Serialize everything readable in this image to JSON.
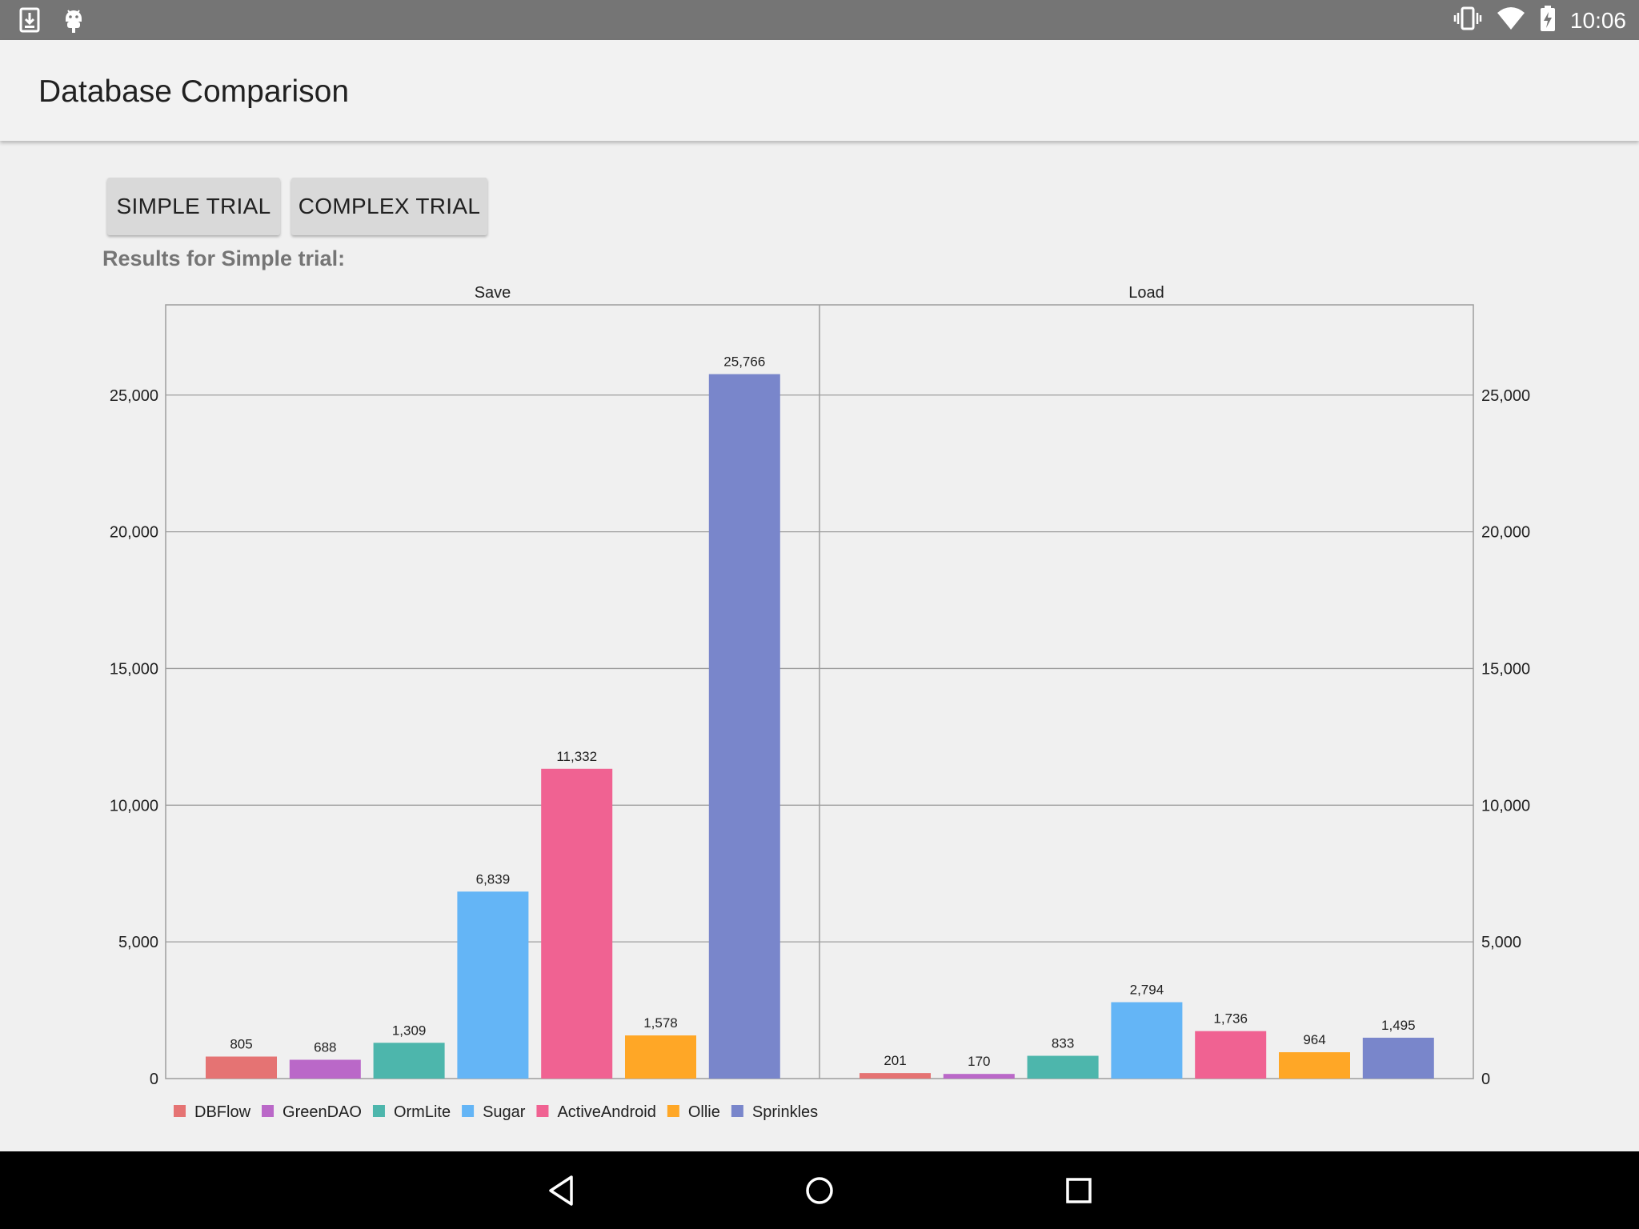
{
  "status_bar": {
    "time": "10:06",
    "left_icons": [
      "download-icon",
      "android-debug-icon"
    ],
    "right_icons": [
      "vibrate-icon",
      "wifi-icon",
      "battery-charging-icon"
    ]
  },
  "app_bar": {
    "title": "Database Comparison"
  },
  "buttons": {
    "simple": "SIMPLE TRIAL",
    "complex": "COMPLEX TRIAL"
  },
  "results_label": "Results for Simple trial:",
  "chart_data": {
    "type": "bar",
    "panels": [
      {
        "title": "Save",
        "values": [
          805,
          688,
          1309,
          6839,
          11332,
          1578,
          25766
        ],
        "value_labels": [
          "805",
          "688",
          "1,309",
          "6,839",
          "11,332",
          "1,578",
          "25,766"
        ]
      },
      {
        "title": "Load",
        "values": [
          201,
          170,
          833,
          2794,
          1736,
          964,
          1495
        ],
        "value_labels": [
          "201",
          "170",
          "833",
          "2,794",
          "1,736",
          "964",
          "1,495"
        ]
      }
    ],
    "series": [
      {
        "name": "DBFlow",
        "color": "#e57373"
      },
      {
        "name": "GreenDAO",
        "color": "#ba68c8"
      },
      {
        "name": "OrmLite",
        "color": "#4db6ac"
      },
      {
        "name": "Sugar",
        "color": "#64b5f6"
      },
      {
        "name": "ActiveAndroid",
        "color": "#f06292"
      },
      {
        "name": "Ollie",
        "color": "#ffa726"
      },
      {
        "name": "Sprinkles",
        "color": "#7986cb"
      }
    ],
    "y_ticks": [
      0,
      5000,
      10000,
      15000,
      20000,
      25000
    ],
    "y_tick_labels": [
      "0",
      "5,000",
      "10,000",
      "15,000",
      "20,000",
      "25,000"
    ],
    "ylim": [
      0,
      28300
    ],
    "grid": true,
    "legend_position": "bottom-left"
  },
  "nav_bar": {
    "icons": [
      "back-icon",
      "home-icon",
      "recents-icon"
    ]
  }
}
